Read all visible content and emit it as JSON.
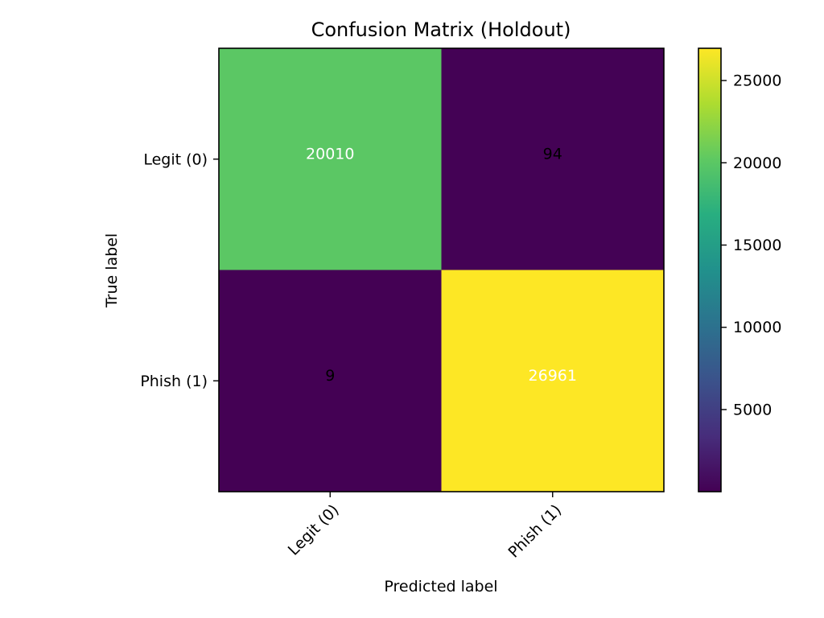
{
  "chart_data": {
    "type": "heatmap",
    "title": "Confusion Matrix (Holdout)",
    "xlabel": "Predicted label",
    "ylabel": "True label",
    "x_categories": [
      "Legit (0)",
      "Phish (1)"
    ],
    "y_categories": [
      "Legit (0)",
      "Phish (1)"
    ],
    "values": [
      [
        20010,
        94
      ],
      [
        9,
        26961
      ]
    ],
    "colorbar": {
      "min": 9,
      "max": 26961,
      "ticks": [
        5000,
        10000,
        15000,
        20000,
        25000
      ],
      "colormap": "viridis"
    },
    "text_colors": {
      "light": "#ffffff",
      "dark": "#000000"
    },
    "grid": false,
    "legend": "none"
  }
}
